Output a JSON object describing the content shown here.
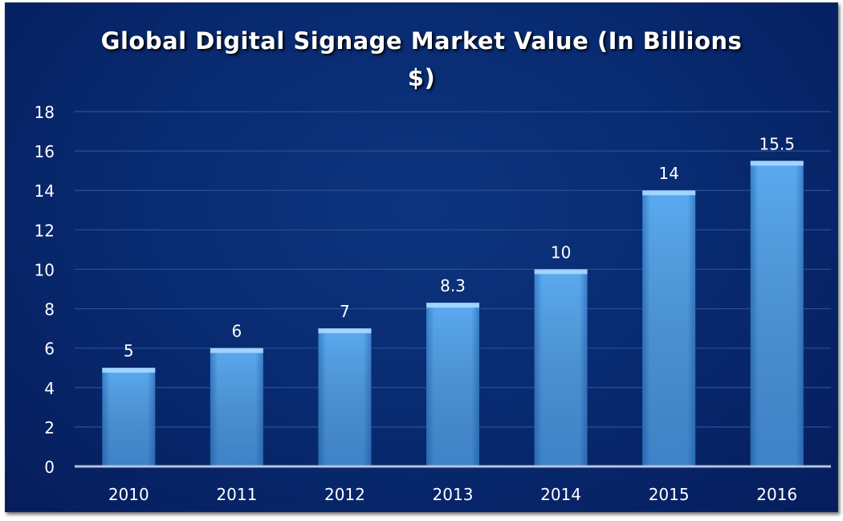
{
  "chart_data": {
    "type": "bar",
    "title": "Global Digital Signage Market Value (In Billions $)",
    "xlabel": "",
    "ylabel": "",
    "categories": [
      "2010",
      "2011",
      "2012",
      "2013",
      "2014",
      "2015",
      "2016"
    ],
    "values": [
      5,
      6,
      7,
      8.3,
      10,
      14,
      15.5
    ],
    "data_labels": [
      "5",
      "6",
      "7",
      "8.3",
      "10",
      "14",
      "15.5"
    ],
    "ylim": [
      0,
      18
    ],
    "yticks": [
      "0",
      "2",
      "4",
      "6",
      "8",
      "10",
      "12",
      "14",
      "16",
      "18"
    ],
    "grid": true,
    "legend": "none",
    "colors": {
      "background": "#082a70",
      "bar": "#4a9be8",
      "bar_top": "#a8d8ff",
      "text": "#ffffff",
      "grid": "#2a4f95"
    }
  }
}
